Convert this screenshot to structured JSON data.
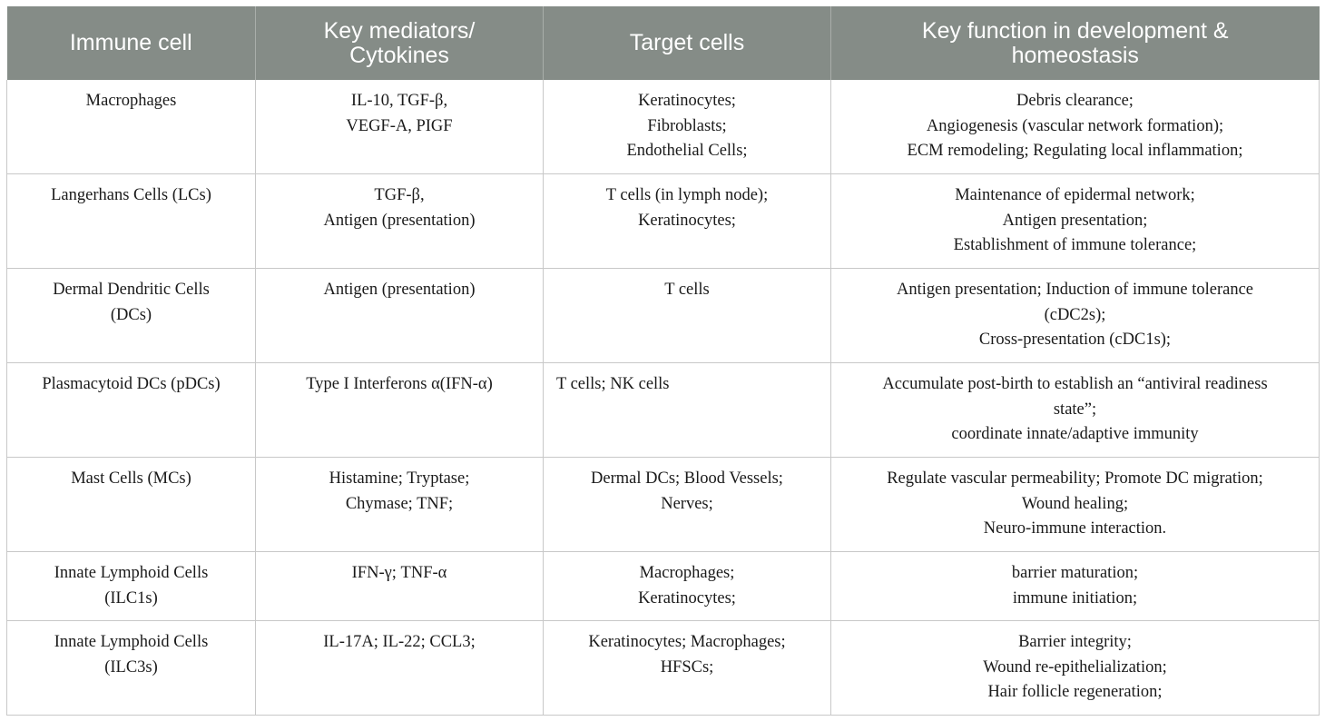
{
  "table": {
    "headers": [
      "Immune cell",
      "Key mediators/\nCytokines",
      "Target cells",
      "Key function in development &\nhomeostasis"
    ],
    "header_style": {
      "background": "#858c87",
      "text_color": "#ffffff"
    },
    "rows": [
      {
        "cell": [
          "Macrophages"
        ],
        "mediators": [
          "IL-10, TGF-β,",
          "VEGF-A, PIGF"
        ],
        "targets": [
          "Keratinocytes;",
          "Fibroblasts;",
          "Endothelial Cells;"
        ],
        "function": [
          "Debris clearance;",
          "Angiogenesis (vascular network formation);",
          "ECM remodeling; Regulating local inflammation;"
        ]
      },
      {
        "cell": [
          "Langerhans Cells (LCs)"
        ],
        "mediators": [
          "TGF-β,",
          "Antigen (presentation)"
        ],
        "targets": [
          "T cells (in lymph node);",
          "Keratinocytes;"
        ],
        "function": [
          "Maintenance of epidermal network;",
          "Antigen presentation;",
          "Establishment of immune tolerance;"
        ]
      },
      {
        "cell": [
          "Dermal Dendritic Cells",
          "(DCs)"
        ],
        "mediators": [
          "Antigen (presentation)"
        ],
        "targets": [
          "T cells"
        ],
        "function": [
          "Antigen presentation; Induction of immune tolerance",
          "(cDC2s);",
          "Cross-presentation (cDC1s);"
        ]
      },
      {
        "cell": [
          "Plasmacytoid DCs (pDCs)"
        ],
        "mediators": [
          "Type I Interferons α(IFN-α)"
        ],
        "targets": [
          "T cells; NK cells"
        ],
        "function": [
          "Accumulate post-birth to establish an “antiviral readiness",
          "state”;",
          "coordinate innate/adaptive immunity"
        ]
      },
      {
        "cell": [
          "Mast Cells (MCs)"
        ],
        "mediators": [
          "Histamine; Tryptase;",
          "Chymase; TNF;"
        ],
        "targets": [
          "Dermal DCs; Blood Vessels;",
          "Nerves;"
        ],
        "function": [
          "Regulate vascular permeability; Promote DC migration;",
          "Wound healing;",
          "Neuro-immune interaction."
        ]
      },
      {
        "cell": [
          "Innate Lymphoid Cells",
          "(ILC1s)"
        ],
        "mediators": [
          "IFN-γ; TNF-α"
        ],
        "targets": [
          "Macrophages;",
          "Keratinocytes;"
        ],
        "function": [
          "barrier maturation;",
          "immune initiation;"
        ]
      },
      {
        "cell": [
          "Innate Lymphoid Cells",
          "(ILC3s)"
        ],
        "mediators": [
          "IL-17A; IL-22; CCL3;"
        ],
        "targets": [
          "Keratinocytes; Macrophages;",
          "HFSCs;"
        ],
        "function": [
          "Barrier integrity;",
          "Wound re-epithelialization;",
          "Hair follicle regeneration;"
        ]
      }
    ]
  }
}
